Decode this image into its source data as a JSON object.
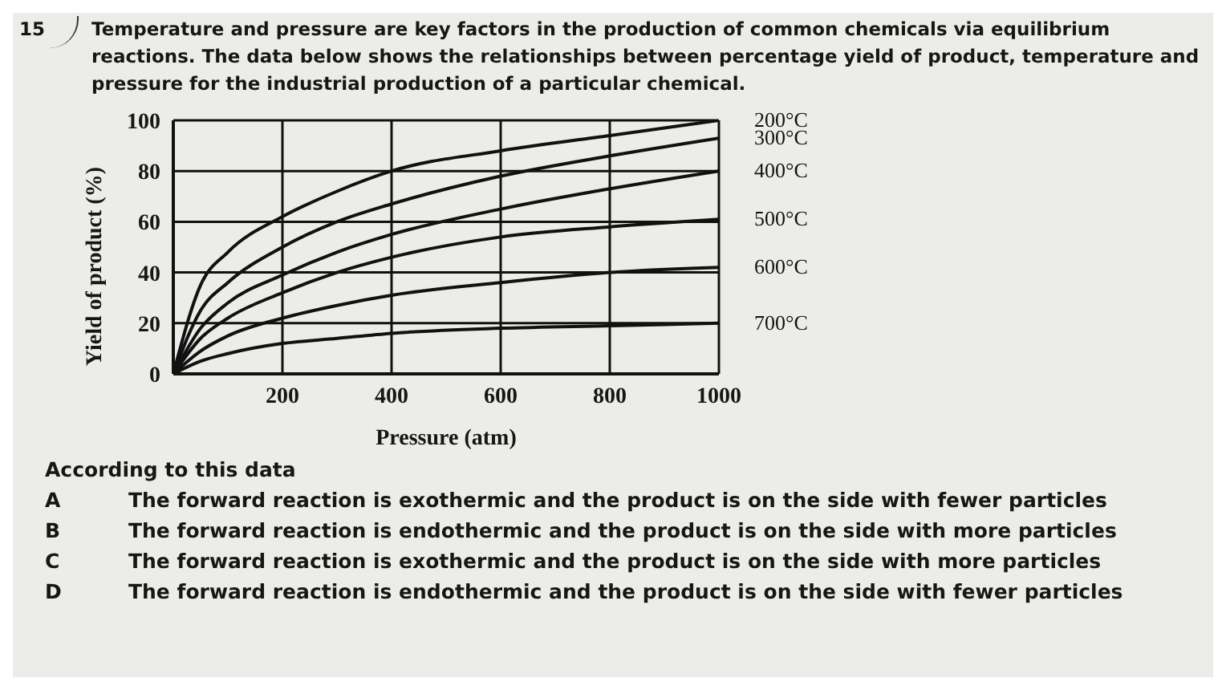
{
  "chart_data": {
    "type": "line",
    "title": "Temperature and pressure are key factors in the production of common chemicals via equilibrium reactions. The data below shows the relationships between percentage yield of product, temperature and pressure for the industrial production of a particular chemical.",
    "xlabel": "Pressure (atm)",
    "ylabel": "Yield of product (%)",
    "x": [
      0,
      50,
      100,
      200,
      300,
      400,
      600,
      800,
      1000
    ],
    "series": [
      {
        "name": "200°C",
        "color": "#111111",
        "values": [
          0,
          35,
          48,
          62,
          72,
          80,
          88,
          94,
          100
        ]
      },
      {
        "name": "300°C",
        "color": "#111111",
        "values": [
          0,
          25,
          36,
          50,
          60,
          67,
          78,
          86,
          93
        ]
      },
      {
        "name": "400°C",
        "color": "#111111",
        "values": [
          0,
          18,
          28,
          39,
          48,
          55,
          65,
          73,
          80
        ]
      },
      {
        "name": "500°C",
        "color": "#111111",
        "values": [
          0,
          14,
          22,
          32,
          40,
          46,
          54,
          58,
          61
        ]
      },
      {
        "name": "600°C",
        "color": "#111111",
        "values": [
          0,
          9,
          15,
          22,
          27,
          31,
          36,
          40,
          42
        ]
      },
      {
        "name": "700°C",
        "color": "#111111",
        "values": [
          0,
          5,
          8,
          12,
          14,
          16,
          18,
          19,
          20
        ]
      }
    ],
    "xlim": [
      0,
      1000
    ],
    "xticks": [
      200,
      400,
      600,
      800,
      1000
    ],
    "ylim": [
      0,
      100
    ],
    "yticks": [
      0,
      20,
      40,
      60,
      80,
      100
    ],
    "grid": true,
    "marker": "none",
    "line_style": "solid",
    "annotations": [
      "15",
      "According to this data",
      "A",
      "The forward reaction is exothermic and the product is on the side with fewer particles",
      "B",
      "The forward reaction is endothermic and the product is on the side with more particles",
      "C",
      "The forward reaction is exothermic and the product is on the side with more particles",
      "D",
      "The forward reaction is endothermic and the product is on the side with fewer particles"
    ]
  }
}
